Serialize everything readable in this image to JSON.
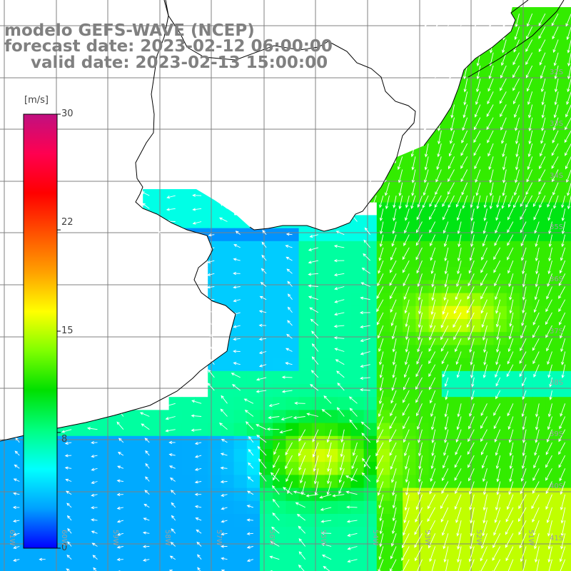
{
  "title": {
    "line1": "modelo GEFS-WAVE (NCEP)",
    "line2": "forecast date: 2023-02-12 06:00:00",
    "line3": "valid date: 2023-02-13 15:00:00"
  },
  "colorbar": {
    "unit": "[m/s]",
    "min": 0,
    "max": 30,
    "ticks": [
      "30",
      "22",
      "15",
      "8",
      "0"
    ],
    "tick_values": [
      30,
      22,
      15,
      8,
      0
    ],
    "colors": [
      "#0000ff",
      "#00a0ff",
      "#00ffff",
      "#00ff80",
      "#00e000",
      "#80ff00",
      "#ffff00",
      "#ffa000",
      "#ff5000",
      "#ff0000",
      "#ff0050",
      "#c01080"
    ]
  },
  "grid": {
    "lat_labels": [
      "32S",
      "33S",
      "34S",
      "35S",
      "36S",
      "37S",
      "38S",
      "39S",
      "40S",
      "41S"
    ],
    "lon_labels": [
      "61W",
      "60W",
      "59W",
      "58W",
      "57W",
      "56W",
      "55W",
      "54W",
      "53W",
      "52W",
      "51W"
    ]
  },
  "map": {
    "land_color": "#ffffff",
    "coast_color": "#000000",
    "grid_color": "#808080",
    "arrow_color": "#ffffff"
  }
}
